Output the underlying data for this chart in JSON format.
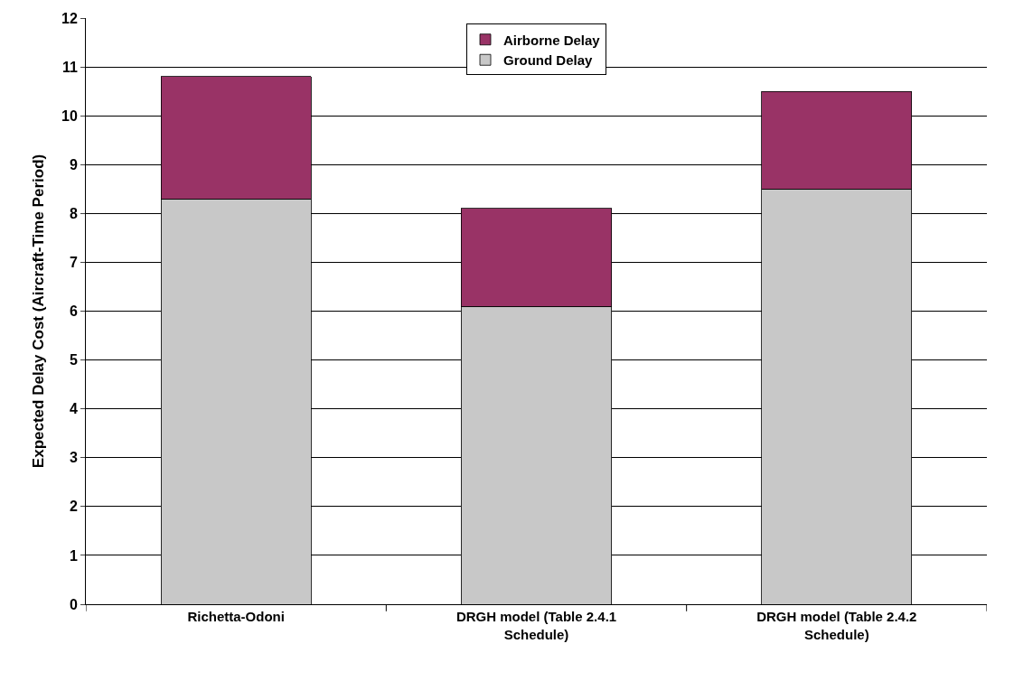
{
  "chart_data": {
    "type": "bar",
    "ylabel": "Expected Delay Cost (Aircraft-Time Period)",
    "categories": [
      "Richetta-Odoni",
      "DRGH model (Table 2.4.1 Schedule)",
      "DRGH model (Table 2.4.2 Schedule)"
    ],
    "stacked": true,
    "series": [
      {
        "name": "Ground Delay",
        "color": "#c8c8c8",
        "values": [
          8.3,
          6.1,
          8.5
        ]
      },
      {
        "name": "Airborne Delay",
        "color": "#993366",
        "values": [
          2.5,
          2.0,
          2.0
        ]
      }
    ],
    "ylim": [
      0,
      12
    ],
    "yticks": [
      0,
      1,
      2,
      3,
      4,
      5,
      6,
      7,
      8,
      9,
      10,
      11,
      12
    ],
    "grid": "y",
    "legend": "top"
  }
}
